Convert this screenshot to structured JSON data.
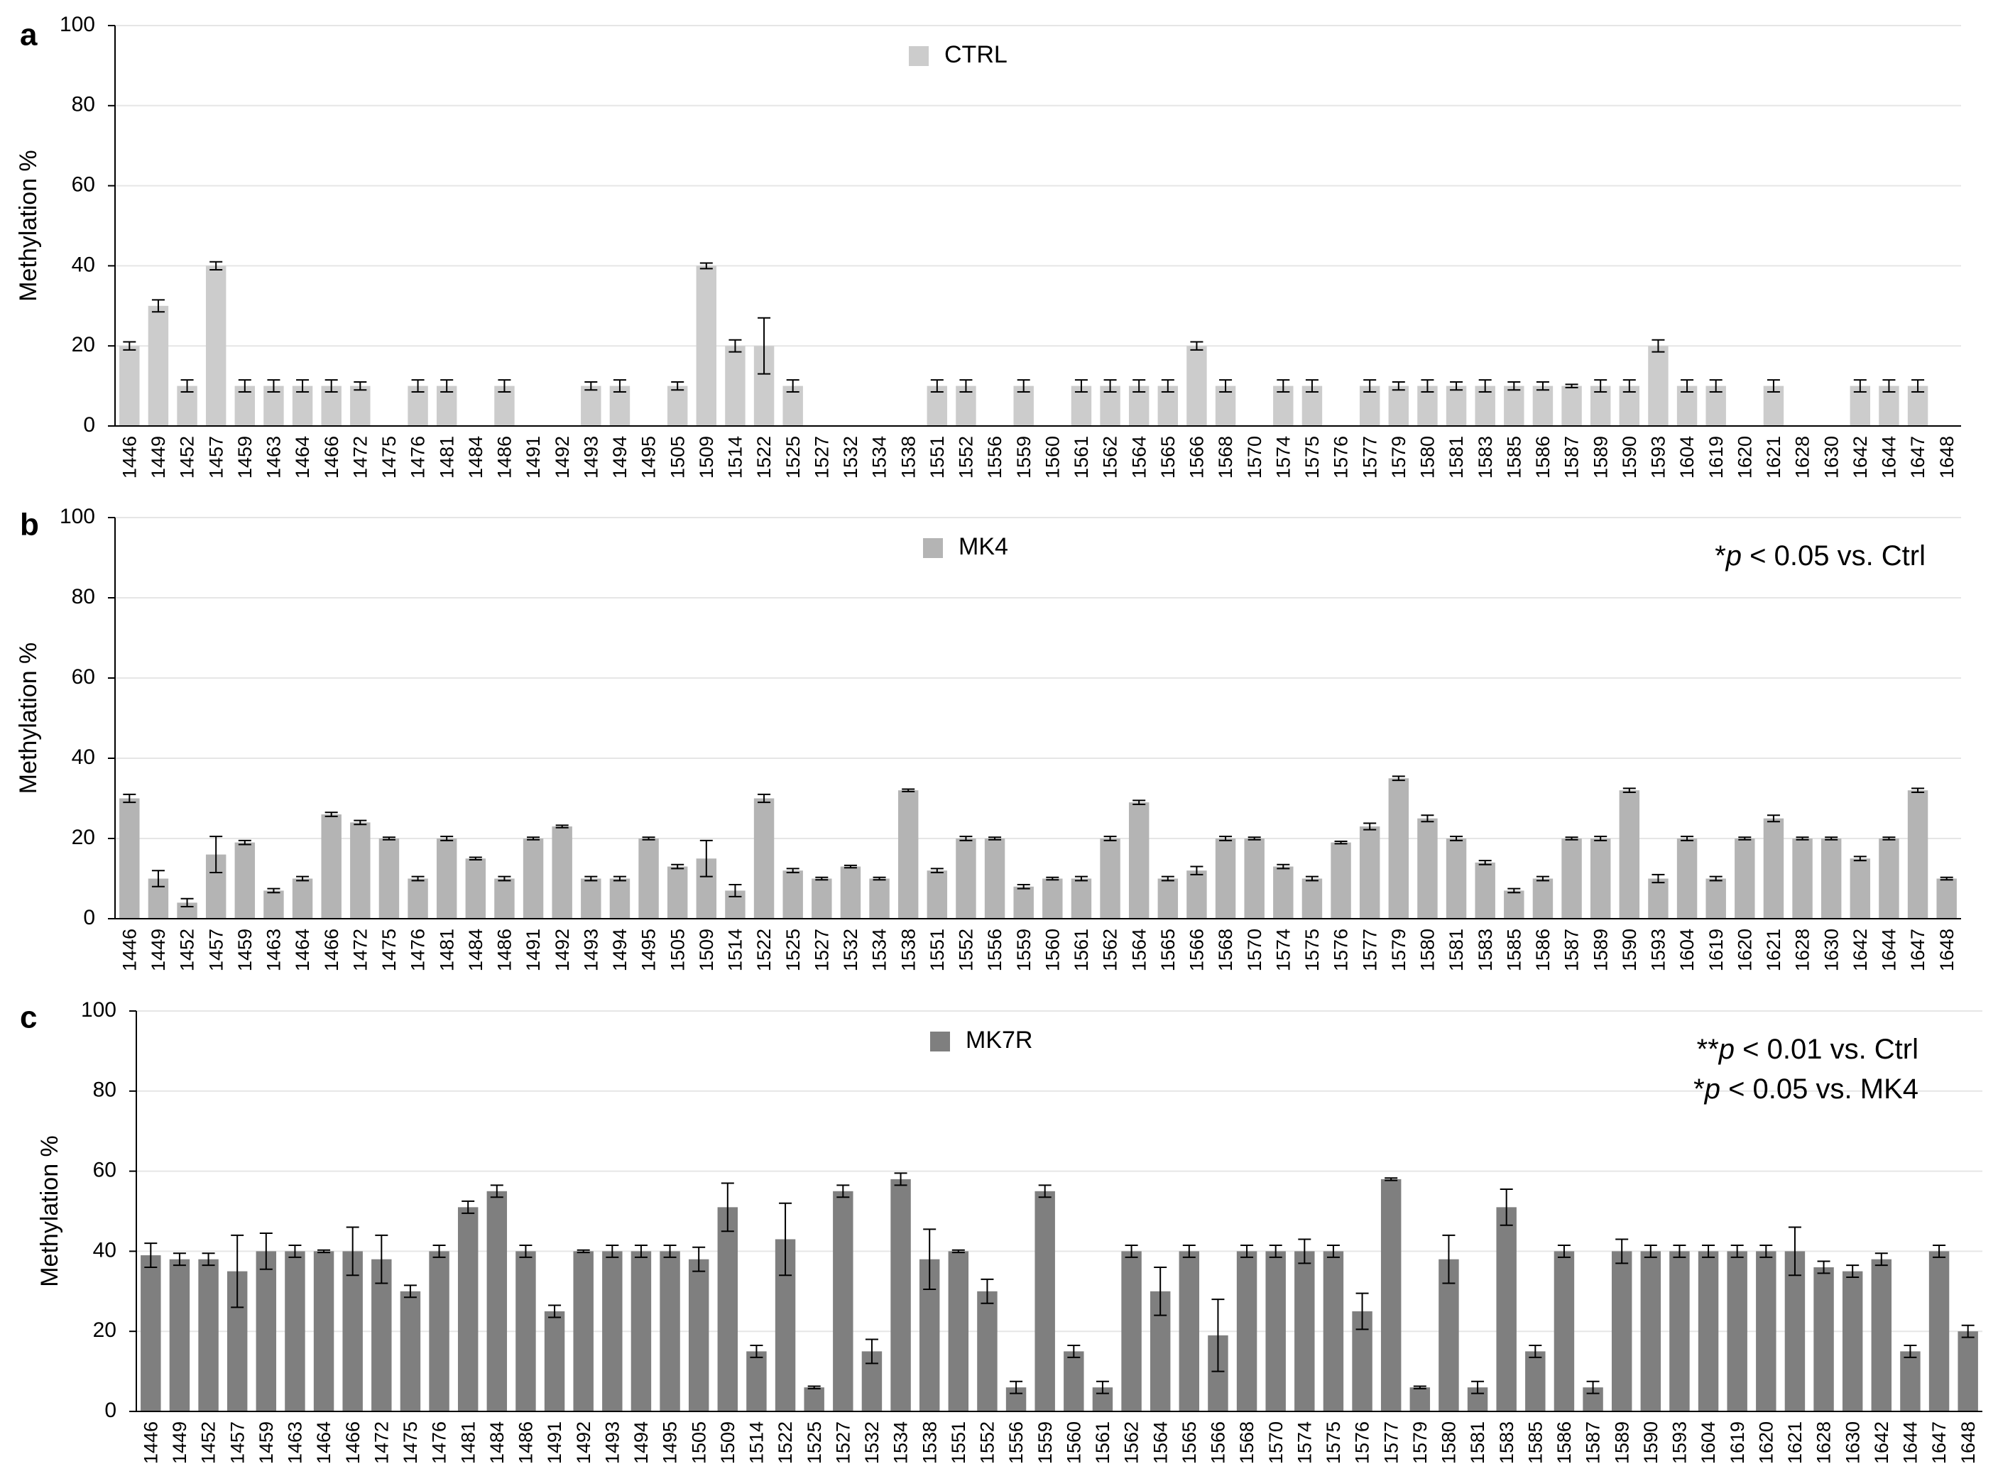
{
  "chart_data": [
    {
      "panel_label": "a",
      "type": "bar",
      "ylabel": "Methylation %",
      "ylim": [
        0,
        100
      ],
      "yticks": [
        0,
        20,
        40,
        60,
        80,
        100
      ],
      "grid": true,
      "legend_position": "top-center",
      "annotations": [],
      "color": "#cccccc",
      "categories": [
        "1446",
        "1449",
        "1452",
        "1457",
        "1459",
        "1463",
        "1464",
        "1466",
        "1472",
        "1475",
        "1476",
        "1481",
        "1484",
        "1486",
        "1491",
        "1492",
        "1493",
        "1494",
        "1495",
        "1505",
        "1509",
        "1514",
        "1522",
        "1525",
        "1527",
        "1532",
        "1534",
        "1538",
        "1551",
        "1552",
        "1556",
        "1559",
        "1560",
        "1561",
        "1562",
        "1564",
        "1565",
        "1566",
        "1568",
        "1570",
        "1574",
        "1575",
        "1576",
        "1577",
        "1579",
        "1580",
        "1581",
        "1583",
        "1585",
        "1586",
        "1587",
        "1589",
        "1590",
        "1593",
        "1604",
        "1619",
        "1620",
        "1621",
        "1628",
        "1630",
        "1642",
        "1644",
        "1647",
        "1648"
      ],
      "series": [
        {
          "name": "CTRL",
          "values": [
            20,
            30,
            10,
            40,
            10,
            10,
            10,
            10,
            10,
            0,
            10,
            10,
            0,
            10,
            0,
            0,
            10,
            10,
            0,
            10,
            40,
            20,
            20,
            10,
            0,
            0,
            0,
            0,
            10,
            10,
            0,
            10,
            0,
            10,
            10,
            10,
            10,
            20,
            10,
            0,
            10,
            10,
            0,
            10,
            10,
            10,
            10,
            10,
            10,
            10,
            10,
            10,
            10,
            20,
            10,
            10,
            0,
            10,
            0,
            0,
            10,
            10,
            10,
            0
          ],
          "errors": [
            1,
            1.5,
            1.5,
            1,
            1.5,
            1.5,
            1.5,
            1.5,
            1,
            0,
            1.5,
            1.5,
            0,
            1.5,
            0,
            0,
            1,
            1.5,
            0,
            1,
            0.7,
            1.5,
            7,
            1.5,
            0,
            0,
            0,
            0,
            1.5,
            1.5,
            0,
            1.5,
            0,
            1.5,
            1.5,
            1.5,
            1.5,
            1,
            1.5,
            0,
            1.5,
            1.5,
            0,
            1.5,
            1,
            1.5,
            1,
            1.5,
            1,
            1,
            0.4,
            1.5,
            1.5,
            1.5,
            1.5,
            1.5,
            0,
            1.5,
            0,
            0,
            1.5,
            1.5,
            1.5,
            0
          ]
        }
      ]
    },
    {
      "panel_label": "b",
      "type": "bar",
      "ylabel": "Methylation %",
      "ylim": [
        0,
        100
      ],
      "yticks": [
        0,
        20,
        40,
        60,
        80,
        100
      ],
      "grid": true,
      "legend_position": "top-center",
      "annotations": [
        {
          "prefix": "*",
          "italic": "p",
          "suffix": " < 0.05 vs. Ctrl"
        }
      ],
      "color": "#b4b4b4",
      "categories": [
        "1446",
        "1449",
        "1452",
        "1457",
        "1459",
        "1463",
        "1464",
        "1466",
        "1472",
        "1475",
        "1476",
        "1481",
        "1484",
        "1486",
        "1491",
        "1492",
        "1493",
        "1494",
        "1495",
        "1505",
        "1509",
        "1514",
        "1522",
        "1525",
        "1527",
        "1532",
        "1534",
        "1538",
        "1551",
        "1552",
        "1556",
        "1559",
        "1560",
        "1561",
        "1562",
        "1564",
        "1565",
        "1566",
        "1568",
        "1570",
        "1574",
        "1575",
        "1576",
        "1577",
        "1579",
        "1580",
        "1581",
        "1583",
        "1585",
        "1586",
        "1587",
        "1589",
        "1590",
        "1593",
        "1604",
        "1619",
        "1620",
        "1621",
        "1628",
        "1630",
        "1642",
        "1644",
        "1647",
        "1648"
      ],
      "series": [
        {
          "name": "MK4",
          "values": [
            30,
            10,
            4,
            16,
            19,
            7,
            10,
            26,
            24,
            20,
            10,
            20,
            15,
            10,
            20,
            23,
            10,
            10,
            20,
            13,
            15,
            7,
            30,
            12,
            10,
            13,
            10,
            32,
            12,
            20,
            20,
            8,
            10,
            10,
            20,
            29,
            10,
            12,
            20,
            20,
            13,
            10,
            19,
            23,
            35,
            25,
            20,
            14,
            7,
            10,
            20,
            20,
            32,
            10,
            20,
            10,
            20,
            25,
            20,
            20,
            15,
            20,
            32,
            10
          ],
          "errors": [
            1,
            2,
            1,
            4.5,
            0.5,
            0.5,
            0.5,
            0.5,
            0.5,
            0.3,
            0.5,
            0.5,
            0.3,
            0.5,
            0.3,
            0.3,
            0.5,
            0.5,
            0.3,
            0.5,
            4.5,
            1.5,
            1,
            0.5,
            0.3,
            0.3,
            0.3,
            0.3,
            0.5,
            0.5,
            0.3,
            0.5,
            0.3,
            0.5,
            0.5,
            0.5,
            0.5,
            1,
            0.5,
            0.3,
            0.5,
            0.5,
            0.3,
            0.8,
            0.5,
            0.8,
            0.5,
            0.5,
            0.5,
            0.5,
            0.3,
            0.5,
            0.5,
            1,
            0.5,
            0.5,
            0.3,
            0.8,
            0.3,
            0.3,
            0.5,
            0.3,
            0.5,
            0.3
          ]
        }
      ]
    },
    {
      "panel_label": "c",
      "type": "bar",
      "ylabel": "Methylation %",
      "ylim": [
        0,
        100
      ],
      "yticks": [
        0,
        20,
        40,
        60,
        80,
        100
      ],
      "grid": true,
      "legend_position": "top-center",
      "annotations": [
        {
          "prefix": "**",
          "italic": "p",
          "suffix": " < 0.01 vs. Ctrl"
        },
        {
          "prefix": "*",
          "italic": "p",
          "suffix": " < 0.05 vs. MK4"
        }
      ],
      "color": "#7f7f7f",
      "categories": [
        "1446",
        "1449",
        "1452",
        "1457",
        "1459",
        "1463",
        "1464",
        "1466",
        "1472",
        "1475",
        "1476",
        "1481",
        "1484",
        "1486",
        "1491",
        "1492",
        "1493",
        "1494",
        "1495",
        "1505",
        "1509",
        "1514",
        "1522",
        "1525",
        "1527",
        "1532",
        "1534",
        "1538",
        "1551",
        "1552",
        "1556",
        "1559",
        "1560",
        "1561",
        "1562",
        "1564",
        "1565",
        "1566",
        "1568",
        "1570",
        "1574",
        "1575",
        "1576",
        "1577",
        "1579",
        "1580",
        "1581",
        "1583",
        "1585",
        "1586",
        "1587",
        "1589",
        "1590",
        "1593",
        "1604",
        "1619",
        "1620",
        "1621",
        "1628",
        "1630",
        "1642",
        "1644",
        "1647",
        "1648"
      ],
      "series": [
        {
          "name": "MK7R",
          "values": [
            39,
            38,
            38,
            35,
            40,
            40,
            40,
            40,
            38,
            30,
            40,
            51,
            55,
            40,
            25,
            40,
            40,
            40,
            40,
            38,
            51,
            15,
            43,
            6,
            55,
            15,
            58,
            38,
            40,
            30,
            6,
            55,
            15,
            6,
            40,
            30,
            40,
            19,
            40,
            40,
            40,
            40,
            25,
            58,
            6,
            38,
            6,
            51,
            15,
            40,
            6,
            40,
            40,
            40,
            40,
            40,
            40,
            40,
            36,
            35,
            38,
            15,
            40,
            20
          ],
          "errors": [
            3,
            1.5,
            1.5,
            9,
            4.5,
            1.5,
            0.3,
            6,
            6,
            1.5,
            1.5,
            1.5,
            1.5,
            1.5,
            1.5,
            0.3,
            1.5,
            1.5,
            1.5,
            3,
            6,
            1.5,
            9,
            0.3,
            1.5,
            3,
            1.5,
            7.5,
            0.3,
            3,
            1.5,
            1.5,
            1.5,
            1.5,
            1.5,
            6,
            1.5,
            9,
            1.5,
            1.5,
            3,
            1.5,
            4.5,
            0.3,
            0.3,
            6,
            1.5,
            4.5,
            1.5,
            1.5,
            1.5,
            3,
            1.5,
            1.5,
            1.5,
            1.5,
            1.5,
            6,
            1.5,
            1.5,
            1.5,
            1.5,
            1.5,
            1.5
          ]
        }
      ]
    }
  ]
}
